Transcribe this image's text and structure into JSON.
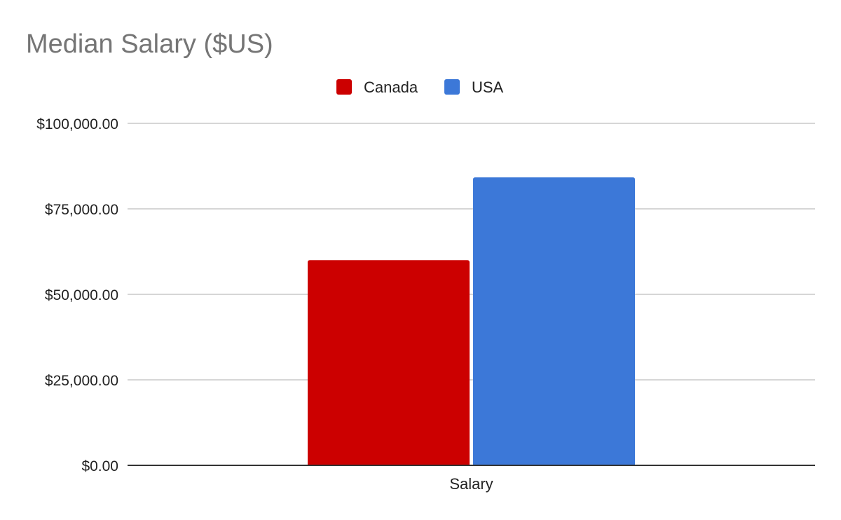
{
  "chart_data": {
    "type": "bar",
    "title": "Median Salary ($US)",
    "categories": [
      "Salary"
    ],
    "series": [
      {
        "name": "Canada",
        "color": "#cc0000",
        "values": [
          60000
        ]
      },
      {
        "name": "USA",
        "color": "#3c78d8",
        "values": [
          84200
        ]
      }
    ],
    "ylim": [
      0,
      100000
    ],
    "y_ticks": [
      {
        "value": 0,
        "label": "$0.00"
      },
      {
        "value": 25000,
        "label": "$25,000.00"
      },
      {
        "value": 50000,
        "label": "$50,000.00"
      },
      {
        "value": 75000,
        "label": "$75,000.00"
      },
      {
        "value": 100000,
        "label": "$100,000.00"
      }
    ],
    "grid": true,
    "legend_position": "top-center"
  }
}
